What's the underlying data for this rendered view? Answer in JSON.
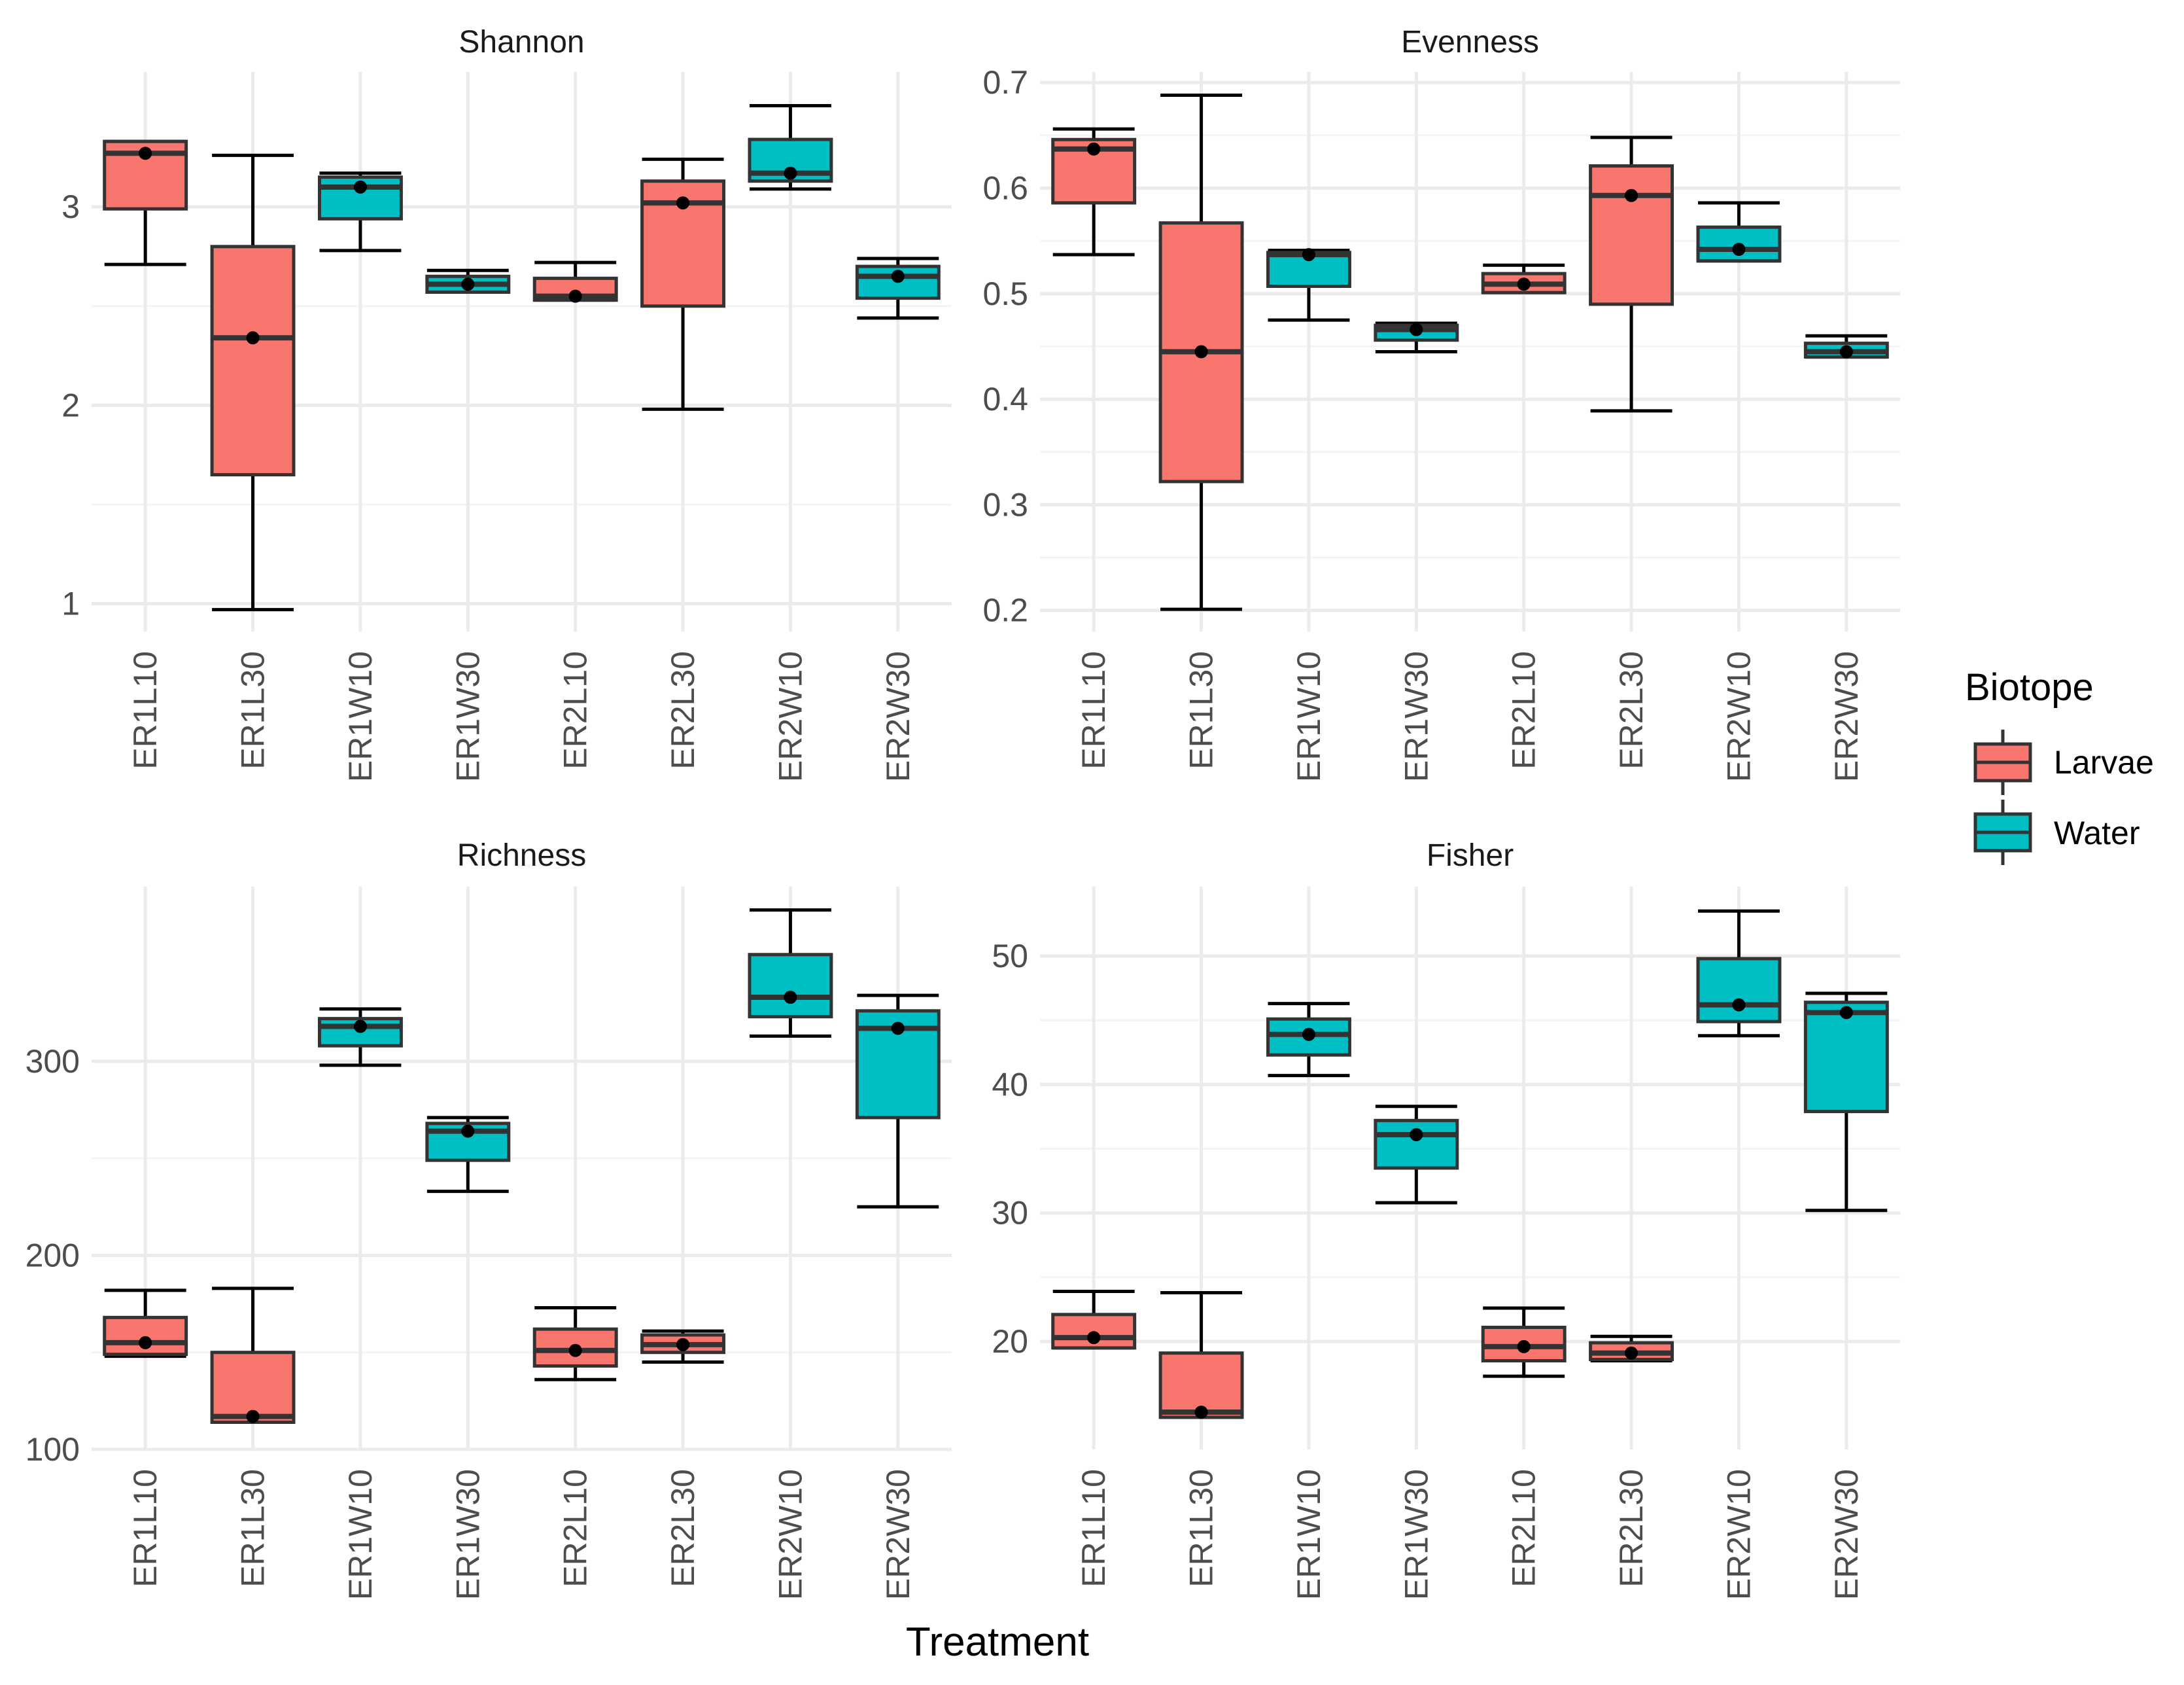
{
  "x_axis_label": "Treatment",
  "legend": {
    "title": "Biotope",
    "items": [
      {
        "label": "Larvae",
        "color": "#F8766D"
      },
      {
        "label": "Water",
        "color": "#00BFC4"
      }
    ]
  },
  "chart_data": [
    {
      "type": "boxplot",
      "title": "Shannon",
      "xlabel": "Treatment",
      "categories": [
        "ER1L10",
        "ER1L30",
        "ER1W10",
        "ER1W30",
        "ER2L10",
        "ER2L30",
        "ER2W10",
        "ER2W30"
      ],
      "group": [
        "Larvae",
        "Larvae",
        "Water",
        "Water",
        "Larvae",
        "Larvae",
        "Water",
        "Water"
      ],
      "ylim": [
        0.86,
        3.68
      ],
      "yticks": [
        1,
        2,
        3
      ],
      "boxes": [
        {
          "min": 2.71,
          "q1": 2.99,
          "median": 3.27,
          "q3": 3.33,
          "max": 3.33
        },
        {
          "min": 0.97,
          "q1": 1.65,
          "median": 2.34,
          "q3": 2.8,
          "max": 3.26
        },
        {
          "min": 2.78,
          "q1": 2.94,
          "median": 3.1,
          "q3": 3.15,
          "max": 3.17
        },
        {
          "min": 2.57,
          "q1": 2.57,
          "median": 2.61,
          "q3": 2.65,
          "max": 2.68
        },
        {
          "min": 2.53,
          "q1": 2.53,
          "median": 2.55,
          "q3": 2.64,
          "max": 2.72
        },
        {
          "min": 1.98,
          "q1": 2.5,
          "median": 3.02,
          "q3": 3.13,
          "max": 3.24
        },
        {
          "min": 3.09,
          "q1": 3.13,
          "median": 3.17,
          "q3": 3.34,
          "max": 3.51
        },
        {
          "min": 2.44,
          "q1": 2.54,
          "median": 2.65,
          "q3": 2.7,
          "max": 2.74
        }
      ]
    },
    {
      "type": "boxplot",
      "title": "Evenness",
      "xlabel": "Treatment",
      "categories": [
        "ER1L10",
        "ER1L30",
        "ER1W10",
        "ER1W30",
        "ER2L10",
        "ER2L30",
        "ER2W10",
        "ER2W30"
      ],
      "group": [
        "Larvae",
        "Larvae",
        "Water",
        "Water",
        "Larvae",
        "Larvae",
        "Water",
        "Water"
      ],
      "ylim": [
        0.18,
        0.71
      ],
      "yticks": [
        0.2,
        0.3,
        0.4,
        0.5,
        0.6,
        0.7
      ],
      "ytick_labels": [
        "0.2",
        "0.3",
        "0.4",
        "0.5",
        "0.6",
        "0.7"
      ],
      "boxes": [
        {
          "min": 0.537,
          "q1": 0.586,
          "median": 0.637,
          "q3": 0.646,
          "max": 0.656
        },
        {
          "min": 0.201,
          "q1": 0.322,
          "median": 0.445,
          "q3": 0.567,
          "max": 0.688
        },
        {
          "min": 0.475,
          "q1": 0.507,
          "median": 0.537,
          "q3": 0.539,
          "max": 0.541
        },
        {
          "min": 0.445,
          "q1": 0.456,
          "median": 0.466,
          "q3": 0.47,
          "max": 0.472
        },
        {
          "min": 0.501,
          "q1": 0.501,
          "median": 0.509,
          "q3": 0.519,
          "max": 0.527
        },
        {
          "min": 0.389,
          "q1": 0.49,
          "median": 0.593,
          "q3": 0.621,
          "max": 0.648
        },
        {
          "min": 0.531,
          "q1": 0.531,
          "median": 0.542,
          "q3": 0.563,
          "max": 0.586
        },
        {
          "min": 0.44,
          "q1": 0.44,
          "median": 0.445,
          "q3": 0.453,
          "max": 0.46
        }
      ]
    },
    {
      "type": "boxplot",
      "title": "Richness",
      "xlabel": "Treatment",
      "categories": [
        "ER1L10",
        "ER1L30",
        "ER1W10",
        "ER1W30",
        "ER2L10",
        "ER2L30",
        "ER2W10",
        "ER2W30"
      ],
      "group": [
        "Larvae",
        "Larvae",
        "Water",
        "Water",
        "Larvae",
        "Larvae",
        "Water",
        "Water"
      ],
      "ylim": [
        100,
        390
      ],
      "yticks": [
        100,
        200,
        300
      ],
      "boxes": [
        {
          "min": 148,
          "q1": 149,
          "median": 155,
          "q3": 168,
          "max": 182
        },
        {
          "min": 114,
          "q1": 114,
          "median": 117,
          "q3": 150,
          "max": 183
        },
        {
          "min": 298,
          "q1": 308,
          "median": 318,
          "q3": 322,
          "max": 327
        },
        {
          "min": 233,
          "q1": 249,
          "median": 264,
          "q3": 268,
          "max": 271
        },
        {
          "min": 136,
          "q1": 143,
          "median": 151,
          "q3": 162,
          "max": 173
        },
        {
          "min": 145,
          "q1": 150,
          "median": 154,
          "q3": 159,
          "max": 161
        },
        {
          "min": 313,
          "q1": 323,
          "median": 333,
          "q3": 355,
          "max": 378
        },
        {
          "min": 225,
          "q1": 271,
          "median": 317,
          "q3": 326,
          "max": 334
        }
      ]
    },
    {
      "type": "boxplot",
      "title": "Fisher",
      "xlabel": "Treatment",
      "categories": [
        "ER1L10",
        "ER1L30",
        "ER1W10",
        "ER1W30",
        "ER2L10",
        "ER2L30",
        "ER2W10",
        "ER2W30"
      ],
      "group": [
        "Larvae",
        "Larvae",
        "Water",
        "Water",
        "Larvae",
        "Larvae",
        "Water",
        "Water"
      ],
      "ylim": [
        11.6,
        55.4
      ],
      "yticks": [
        20,
        30,
        40,
        50
      ],
      "boxes": [
        {
          "min": 19.5,
          "q1": 19.5,
          "median": 20.3,
          "q3": 22.1,
          "max": 23.9
        },
        {
          "min": 14.1,
          "q1": 14.1,
          "median": 14.5,
          "q3": 19.1,
          "max": 23.8
        },
        {
          "min": 40.7,
          "q1": 42.3,
          "median": 43.9,
          "q3": 45.1,
          "max": 46.3
        },
        {
          "min": 30.8,
          "q1": 33.5,
          "median": 36.1,
          "q3": 37.2,
          "max": 38.3
        },
        {
          "min": 17.3,
          "q1": 18.5,
          "median": 19.6,
          "q3": 21.1,
          "max": 22.6
        },
        {
          "min": 18.5,
          "q1": 18.6,
          "median": 19.1,
          "q3": 19.9,
          "max": 20.4
        },
        {
          "min": 43.8,
          "q1": 44.9,
          "median": 46.2,
          "q3": 49.8,
          "max": 53.5
        },
        {
          "min": 30.2,
          "q1": 37.9,
          "median": 45.6,
          "q3": 46.4,
          "max": 47.1
        }
      ]
    }
  ]
}
